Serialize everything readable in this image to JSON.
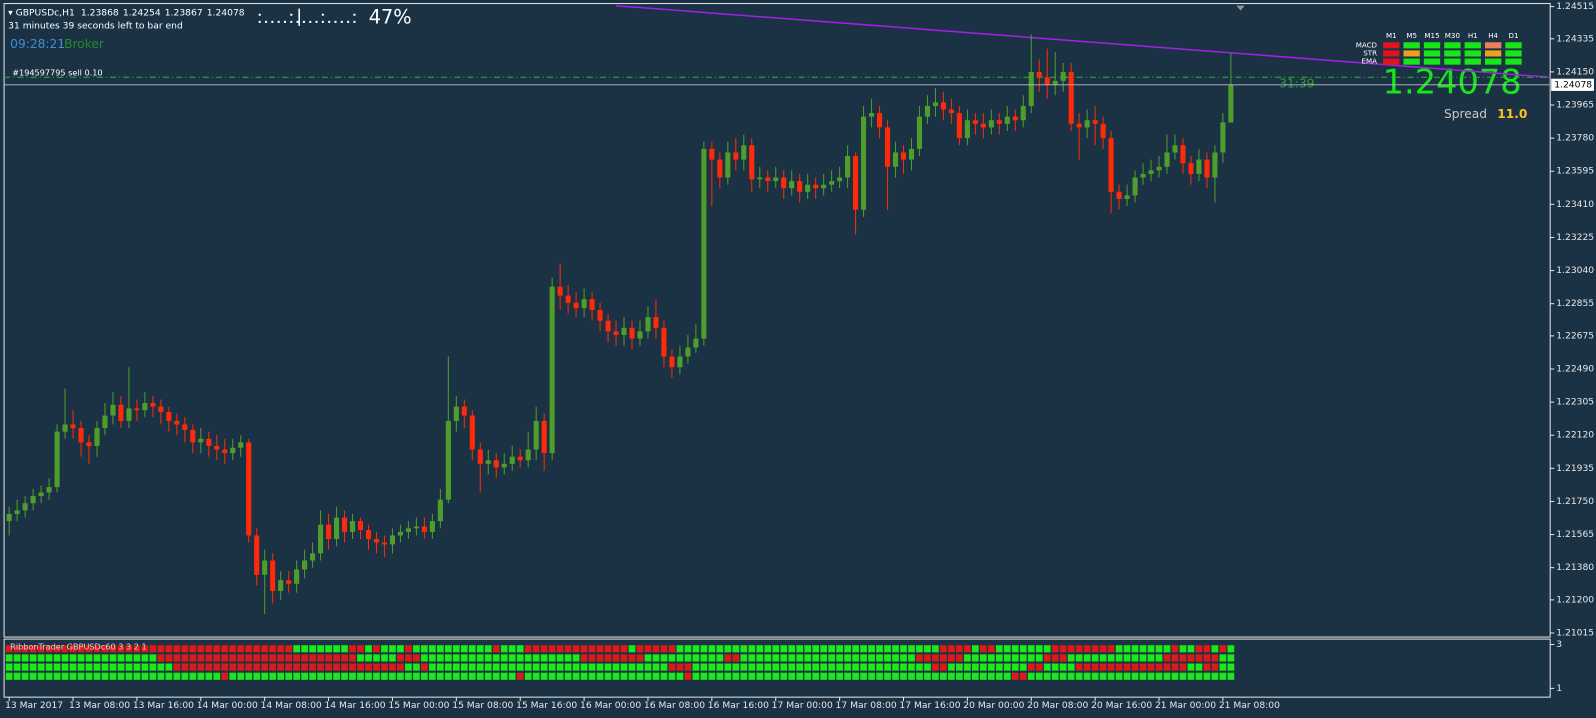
{
  "chart_data": {
    "type": "candlestick",
    "symbol": "GBPUSDc,H1",
    "timer_text": "31 minutes 39 seconds left to bar end",
    "clock": "09:28:21",
    "clock_label": "Broker",
    "progress": "47%",
    "countdown": "31:39",
    "spread": {
      "label": "Spread",
      "value": "11.0"
    },
    "bull_color": "#4f9e2c",
    "bear_color": "#ff2a0a",
    "ylim": [
      1.21015,
      1.24515
    ],
    "yticks": [
      1.24515,
      1.24335,
      {
        "value": 1.2415,
        "label": "1.24150"
      },
      1.23965,
      {
        "value": 1.2378,
        "label": "1.23780"
      },
      1.23595,
      {
        "value": 1.2341,
        "label": "1.23410"
      },
      1.23225,
      {
        "value": 1.2304,
        "label": "1.23040"
      },
      1.22855,
      1.22675,
      {
        "value": 1.2249,
        "label": "1.22490"
      },
      1.22305,
      {
        "value": 1.2212,
        "label": "1.22120"
      },
      1.21935,
      {
        "value": 1.2175,
        "label": "1.21750"
      },
      1.21565,
      {
        "value": 1.2138,
        "label": "1.21380"
      },
      {
        "value": 1.212,
        "label": "1.21200"
      },
      1.21015
    ],
    "categories": [
      "13 Mar 2017",
      null,
      null,
      null,
      null,
      null,
      null,
      null,
      "13 Mar 08:00",
      null,
      null,
      null,
      null,
      null,
      null,
      null,
      "13 Mar 16:00",
      null,
      null,
      null,
      null,
      null,
      null,
      null,
      "14 Mar 00:00",
      null,
      null,
      null,
      null,
      null,
      null,
      null,
      "14 Mar 08:00",
      null,
      null,
      null,
      null,
      null,
      null,
      null,
      "14 Mar 16:00",
      null,
      null,
      null,
      null,
      null,
      null,
      null,
      "15 Mar 00:00",
      null,
      null,
      null,
      null,
      null,
      null,
      null,
      "15 Mar 08:00",
      null,
      null,
      null,
      null,
      null,
      null,
      null,
      "15 Mar 16:00",
      null,
      null,
      null,
      null,
      null,
      null,
      null,
      "16 Mar 00:00",
      null,
      null,
      null,
      null,
      null,
      null,
      null,
      "16 Mar 08:00",
      null,
      null,
      null,
      null,
      null,
      null,
      null,
      "16 Mar 16:00",
      null,
      null,
      null,
      null,
      null,
      null,
      null,
      "17 Mar 00:00",
      null,
      null,
      null,
      null,
      null,
      null,
      null,
      "17 Mar 08:00",
      null,
      null,
      null,
      null,
      null,
      null,
      null,
      "17 Mar 16:00",
      null,
      null,
      null,
      null,
      null,
      null,
      null,
      "20 Mar 00:00",
      null,
      null,
      null,
      null,
      null,
      null,
      null,
      "20 Mar 08:00",
      null,
      null,
      null,
      null,
      null,
      null,
      null,
      "20 Mar 16:00",
      null,
      null,
      null,
      null,
      null,
      null,
      null,
      "21 Mar 00:00",
      null,
      null,
      null,
      null,
      null,
      null,
      null,
      "21 Mar 08:00",
      null
    ],
    "open": [
      1.2164,
      1.2168,
      1.217,
      1.2174,
      1.2178,
      1.218,
      1.2183,
      1.2214,
      1.2218,
      1.2216,
      1.2208,
      1.2206,
      1.2216,
      1.2223,
      1.2229,
      1.222,
      1.2227,
      1.2226,
      1.223,
      1.2228,
      1.2225,
      1.222,
      1.2218,
      1.2215,
      1.2208,
      1.221,
      1.2206,
      1.2204,
      1.2202,
      1.2205,
      1.2208,
      1.2156,
      1.2134,
      1.2142,
      1.2125,
      1.2131,
      1.2129,
      1.2137,
      1.2142,
      1.2146,
      1.2162,
      1.2154,
      1.2166,
      1.2158,
      1.2164,
      1.2159,
      1.2154,
      1.2152,
      1.2151,
      1.2156,
      1.2158,
      1.216,
      1.2161,
      1.2158,
      1.2164,
      1.2176,
      1.222,
      1.2228,
      1.2223,
      1.2204,
      1.2196,
      1.2198,
      1.2194,
      1.2196,
      1.22,
      1.2198,
      1.2204,
      1.222,
      1.2202,
      1.2295,
      1.229,
      1.2286,
      1.2283,
      1.2288,
      1.2282,
      1.2276,
      1.227,
      1.2268,
      1.2272,
      1.2266,
      1.227,
      1.2278,
      1.2272,
      1.2256,
      1.225,
      1.2256,
      1.2261,
      1.2266,
      1.2372,
      1.2366,
      1.2356,
      1.237,
      1.2366,
      1.2374,
      1.2355,
      1.2356,
      1.2354,
      1.2356,
      1.235,
      1.2354,
      1.2348,
      1.2352,
      1.235,
      1.2352,
      1.2354,
      1.2356,
      1.2368,
      1.2338,
      1.239,
      1.2392,
      1.2384,
      1.2362,
      1.237,
      1.2366,
      1.2372,
      1.239,
      1.2396,
      1.2398,
      1.2394,
      1.2392,
      1.2378,
      1.2388,
      1.2386,
      1.2384,
      1.2388,
      1.2386,
      1.239,
      1.2388,
      1.2396,
      1.2415,
      1.2412,
      1.2408,
      1.241,
      1.2415,
      1.2386,
      1.2384,
      1.2388,
      1.2386,
      1.2378,
      1.2348,
      1.2344,
      1.2346,
      1.2356,
      1.2358,
      1.236,
      1.2362,
      1.237,
      1.2374,
      1.2364,
      1.2358,
      1.2366,
      1.2356,
      1.237,
      1.23868
    ],
    "high": [
      1.2172,
      1.2176,
      1.2178,
      1.2182,
      1.2184,
      1.2188,
      1.2218,
      1.2238,
      1.2226,
      1.222,
      1.2212,
      1.222,
      1.223,
      1.2236,
      1.2234,
      1.225,
      1.2232,
      1.2236,
      1.2234,
      1.2232,
      1.2228,
      1.2224,
      1.2222,
      1.2218,
      1.2216,
      1.2214,
      1.2212,
      1.221,
      1.221,
      1.2212,
      1.221,
      1.216,
      1.2148,
      1.2146,
      1.2136,
      1.2136,
      1.2142,
      1.2148,
      1.2152,
      1.217,
      1.2168,
      1.2172,
      1.217,
      1.2168,
      1.2166,
      1.2162,
      1.2158,
      1.2156,
      1.216,
      1.2162,
      1.2164,
      1.2166,
      1.2166,
      1.2168,
      1.2182,
      1.2256,
      1.2234,
      1.2232,
      1.2226,
      1.2208,
      1.2204,
      1.2202,
      1.2202,
      1.2206,
      1.2204,
      1.2214,
      1.2228,
      1.2224,
      1.23,
      1.2308,
      1.2296,
      1.2292,
      1.2294,
      1.2292,
      1.2286,
      1.228,
      1.2276,
      1.2278,
      1.2276,
      1.2276,
      1.2284,
      1.2288,
      1.2276,
      1.226,
      1.2262,
      1.2268,
      1.2274,
      1.2376,
      1.2376,
      1.237,
      1.2376,
      1.2378,
      1.238,
      1.2378,
      1.2362,
      1.236,
      1.2362,
      1.236,
      1.236,
      1.2358,
      1.2358,
      1.2356,
      1.2358,
      1.236,
      1.2362,
      1.2374,
      1.237,
      1.2396,
      1.24,
      1.2396,
      1.2388,
      1.2376,
      1.2374,
      1.2378,
      1.2396,
      1.2402,
      1.2406,
      1.2404,
      1.24,
      1.2396,
      1.2394,
      1.2392,
      1.2392,
      1.2394,
      1.2392,
      1.2396,
      1.2394,
      1.2402,
      1.2436,
      1.2422,
      1.2428,
      1.2426,
      1.242,
      1.242,
      1.2392,
      1.2394,
      1.2396,
      1.239,
      1.2382,
      1.2352,
      1.2352,
      1.236,
      1.2364,
      1.2366,
      1.2368,
      1.238,
      1.238,
      1.2378,
      1.2368,
      1.2372,
      1.237,
      1.2374,
      1.2392,
      1.24254
    ],
    "low": [
      1.2156,
      1.2164,
      1.2166,
      1.217,
      1.2174,
      1.2176,
      1.218,
      1.221,
      1.221,
      1.22,
      1.2196,
      1.22,
      1.2212,
      1.2218,
      1.2216,
      1.2216,
      1.222,
      1.2222,
      1.2222,
      1.2218,
      1.2214,
      1.2212,
      1.2208,
      1.2202,
      1.2202,
      1.22,
      1.2198,
      1.2196,
      1.2198,
      1.22,
      1.2152,
      1.2128,
      1.2112,
      1.2118,
      1.212,
      1.2124,
      1.2124,
      1.2132,
      1.2138,
      1.2142,
      1.2148,
      1.215,
      1.2152,
      1.2154,
      1.2154,
      1.2148,
      1.2146,
      1.2144,
      1.2146,
      1.2152,
      1.2154,
      1.2156,
      1.2154,
      1.2154,
      1.216,
      1.2174,
      1.2214,
      1.2216,
      1.2198,
      1.218,
      1.219,
      1.2188,
      1.219,
      1.2192,
      1.2194,
      1.2194,
      1.2198,
      1.2192,
      1.2198,
      1.2282,
      1.228,
      1.2278,
      1.2278,
      1.2276,
      1.227,
      1.2264,
      1.2262,
      1.2262,
      1.226,
      1.2262,
      1.2266,
      1.2266,
      1.225,
      1.2244,
      1.2246,
      1.2252,
      1.2258,
      1.2262,
      1.234,
      1.235,
      1.2352,
      1.236,
      1.236,
      1.2348,
      1.235,
      1.2348,
      1.235,
      1.2344,
      1.2346,
      1.2342,
      1.2344,
      1.2344,
      1.2346,
      1.2348,
      1.235,
      1.235,
      1.2324,
      1.2334,
      1.2384,
      1.2378,
      1.2338,
      1.2356,
      1.2358,
      1.236,
      1.2368,
      1.2386,
      1.239,
      1.2388,
      1.2386,
      1.2374,
      1.2374,
      1.238,
      1.2378,
      1.238,
      1.238,
      1.2382,
      1.2382,
      1.2384,
      1.2392,
      1.2404,
      1.24,
      1.2402,
      1.2404,
      1.2382,
      1.2366,
      1.2378,
      1.2374,
      1.2372,
      1.2336,
      1.2338,
      1.234,
      1.2342,
      1.2352,
      1.2354,
      1.2356,
      1.2358,
      1.2366,
      1.2358,
      1.2352,
      1.2354,
      1.235,
      1.2342,
      1.2364,
      1.23867
    ],
    "close": [
      1.2168,
      1.217,
      1.2174,
      1.2178,
      1.218,
      1.2183,
      1.2214,
      1.2218,
      1.2216,
      1.2208,
      1.2206,
      1.2216,
      1.2223,
      1.2229,
      1.222,
      1.2227,
      1.2226,
      1.223,
      1.2228,
      1.2225,
      1.222,
      1.2218,
      1.2215,
      1.2208,
      1.221,
      1.2206,
      1.2204,
      1.2202,
      1.2205,
      1.2208,
      1.2156,
      1.2134,
      1.2142,
      1.2125,
      1.2131,
      1.2129,
      1.2137,
      1.2142,
      1.2146,
      1.2162,
      1.2154,
      1.2166,
      1.2158,
      1.2164,
      1.2159,
      1.2154,
      1.2152,
      1.2151,
      1.2156,
      1.2158,
      1.216,
      1.2161,
      1.2158,
      1.2164,
      1.2176,
      1.222,
      1.2228,
      1.2223,
      1.2204,
      1.2196,
      1.2198,
      1.2194,
      1.2196,
      1.22,
      1.2198,
      1.2204,
      1.222,
      1.2202,
      1.2295,
      1.229,
      1.2286,
      1.2283,
      1.2288,
      1.2282,
      1.2276,
      1.227,
      1.2268,
      1.2272,
      1.2266,
      1.227,
      1.2278,
      1.2272,
      1.2256,
      1.225,
      1.2256,
      1.2261,
      1.2266,
      1.2372,
      1.2366,
      1.2356,
      1.237,
      1.2366,
      1.2374,
      1.2355,
      1.2356,
      1.2354,
      1.2356,
      1.235,
      1.2354,
      1.2348,
      1.2352,
      1.235,
      1.2352,
      1.2354,
      1.2356,
      1.2368,
      1.2338,
      1.239,
      1.2392,
      1.2384,
      1.2362,
      1.237,
      1.2366,
      1.2372,
      1.239,
      1.2396,
      1.2398,
      1.2394,
      1.2392,
      1.2378,
      1.2388,
      1.2386,
      1.2384,
      1.2388,
      1.2386,
      1.239,
      1.2388,
      1.2396,
      1.2415,
      1.2412,
      1.2408,
      1.241,
      1.2415,
      1.2386,
      1.2384,
      1.2388,
      1.2386,
      1.2378,
      1.2348,
      1.2344,
      1.2346,
      1.2356,
      1.2358,
      1.236,
      1.2362,
      1.237,
      1.2374,
      1.2364,
      1.2358,
      1.2366,
      1.2356,
      1.237,
      1.23868,
      1.24078
    ],
    "trendline": {
      "color": "#a21fe6",
      "x": [
        76,
        193
      ],
      "y": [
        1.2452,
        1.2412
      ]
    },
    "order": {
      "label": "#194597795 sell 0.10",
      "price": 1.2412,
      "color": "#2fb52f"
    },
    "mtf": {
      "columns": [
        "M1",
        "M5",
        "M15",
        "M30",
        "H1",
        "H4",
        "D1"
      ],
      "rows": [
        {
          "name": "MACD",
          "colors": [
            "#e0141e",
            "#19e619",
            "#19e619",
            "#19e619",
            "#19e619",
            "#e8805a",
            "#19e619"
          ]
        },
        {
          "name": "STR",
          "colors": [
            "#e0141e",
            "#f0a020",
            "#19e619",
            "#19e619",
            "#19e619",
            "#f0a020",
            "#19e619"
          ]
        },
        {
          "name": "EMA",
          "colors": [
            "#e0141e",
            "#19e619",
            "#19e619",
            "#19e619",
            "#19e619",
            "#19e619",
            "#19e619"
          ]
        }
      ]
    },
    "ribbon": {
      "label": "RibbonTrader GBPUSDc60 3 3 2 1",
      "ylim": [
        0.6,
        3.2
      ],
      "yticks": [
        3,
        1
      ],
      "rows": [
        [
          [
            "#dd1a1a",
            36
          ],
          [
            "#1aea1a",
            7
          ],
          [
            "#dd1a1a",
            2
          ],
          [
            "#1aea1a",
            1
          ],
          [
            "#dd1a1a",
            1
          ],
          [
            "#1aea1a",
            3
          ],
          [
            "#dd1a1a",
            1
          ],
          [
            "#1aea1a",
            10
          ],
          [
            "#dd1a1a",
            1
          ],
          [
            "#1aea1a",
            3
          ],
          [
            "#dd1a1a",
            13
          ],
          [
            "#1aea1a",
            1
          ],
          [
            "#dd1a1a",
            5
          ],
          [
            "#1aea1a",
            33
          ],
          [
            "#dd1a1a",
            4
          ],
          [
            "#1aea1a",
            1
          ],
          [
            "#dd1a1a",
            2
          ],
          [
            "#1aea1a",
            7
          ],
          [
            "#dd1a1a",
            8
          ],
          [
            "#1aea1a",
            7
          ],
          [
            "#dd1a1a",
            1
          ],
          [
            "#1aea1a",
            2
          ],
          [
            "#dd1a1a",
            2
          ],
          [
            "#1aea1a",
            1
          ],
          [
            "#dd1a1a",
            1
          ],
          [
            "#1aea1a",
            1
          ]
        ],
        [
          [
            "#1aea1a",
            19
          ],
          [
            "#dd1a1a",
            25
          ],
          [
            "#1aea1a",
            5
          ],
          [
            "#dd1a1a",
            3
          ],
          [
            "#1aea1a",
            20
          ],
          [
            "#dd1a1a",
            8
          ],
          [
            "#1aea1a",
            10
          ],
          [
            "#dd1a1a",
            2
          ],
          [
            "#1aea1a",
            22
          ],
          [
            "#dd1a1a",
            6
          ],
          [
            "#1aea1a",
            10
          ],
          [
            "#dd1a1a",
            3
          ],
          [
            "#1aea1a",
            12
          ],
          [
            "#dd1a1a",
            7
          ],
          [
            "#1aea1a",
            2
          ]
        ],
        [
          [
            "#1aea1a",
            21
          ],
          [
            "#dd1a1a",
            29
          ],
          [
            "#1aea1a",
            2
          ],
          [
            "#dd1a1a",
            1
          ],
          [
            "#1aea1a",
            30
          ],
          [
            "#dd1a1a",
            3
          ],
          [
            "#1aea1a",
            30
          ],
          [
            "#dd1a1a",
            2
          ],
          [
            "#1aea1a",
            10
          ],
          [
            "#dd1a1a",
            2
          ],
          [
            "#1aea1a",
            4
          ],
          [
            "#dd1a1a",
            14
          ],
          [
            "#1aea1a",
            2
          ],
          [
            "#dd1a1a",
            2
          ],
          [
            "#1aea1a",
            2
          ]
        ],
        [
          [
            "#1aea1a",
            27
          ],
          [
            "#dd1a1a",
            1
          ],
          [
            "#1aea1a",
            36
          ],
          [
            "#dd1a1a",
            1
          ],
          [
            "#1aea1a",
            20
          ],
          [
            "#dd1a1a",
            1
          ],
          [
            "#1aea1a",
            40
          ],
          [
            "#dd1a1a",
            2
          ],
          [
            "#1aea1a",
            26
          ]
        ]
      ]
    }
  }
}
